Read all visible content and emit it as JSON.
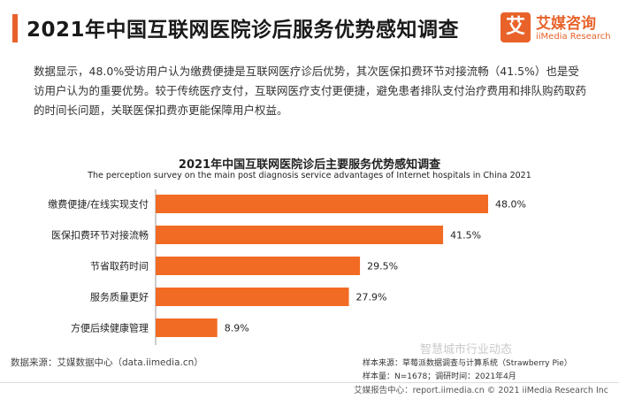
{
  "header": {
    "title": "2021年中国互联网医院诊后服务优势感知调查"
  },
  "logo": {
    "badge_char": "艾",
    "cn": "艾媒咨询",
    "en": "iiMedia Research",
    "color": "#e8622a"
  },
  "description": "数据显示，48.0%受访用户认为缴费便捷是互联网医疗诊后优势，其次医保扣费环节对接流畅（41.5%）也是受访用户认为的重要优势。较于传统医疗支付，互联网医疗支付更便捷，避免患者排队支付治疗费用和排队购药取药的时间长问题，关联医保扣费亦更能保障用户权益。",
  "chart_data": {
    "type": "bar",
    "orientation": "horizontal",
    "title": "2021年中国互联网医院诊后主要服务优势感知调查",
    "subtitle": "The perception survey on the main post diagnosis service advantages of Internet hospitals in China 2021",
    "categories": [
      "缴费便捷/在线实现支付",
      "医保扣费环节对接流畅",
      "节省取药时间",
      "服务质量更好",
      "方便后续健康管理"
    ],
    "values": [
      48.0,
      41.5,
      29.5,
      27.9,
      8.9
    ],
    "value_labels": [
      "48.0%",
      "41.5%",
      "29.5%",
      "27.9%",
      "8.9%"
    ],
    "xlim": [
      0,
      60
    ],
    "bar_color": "#f26b24",
    "grid": false,
    "legend": "none"
  },
  "footer": {
    "source": "数据来源：艾媒数据中心（data.iimedia.cn）",
    "sample_source": "样本来源：草莓派数据调查与计算系统（Strawberry Pie）",
    "sample_info": "样本量：N=1678；调研时间：2021年4月",
    "watermark": "智慧城市行业动态",
    "bottom": "艾媒报告中心：report.iimedia.cn  ©  2021  iiMedia Research  Inc"
  }
}
